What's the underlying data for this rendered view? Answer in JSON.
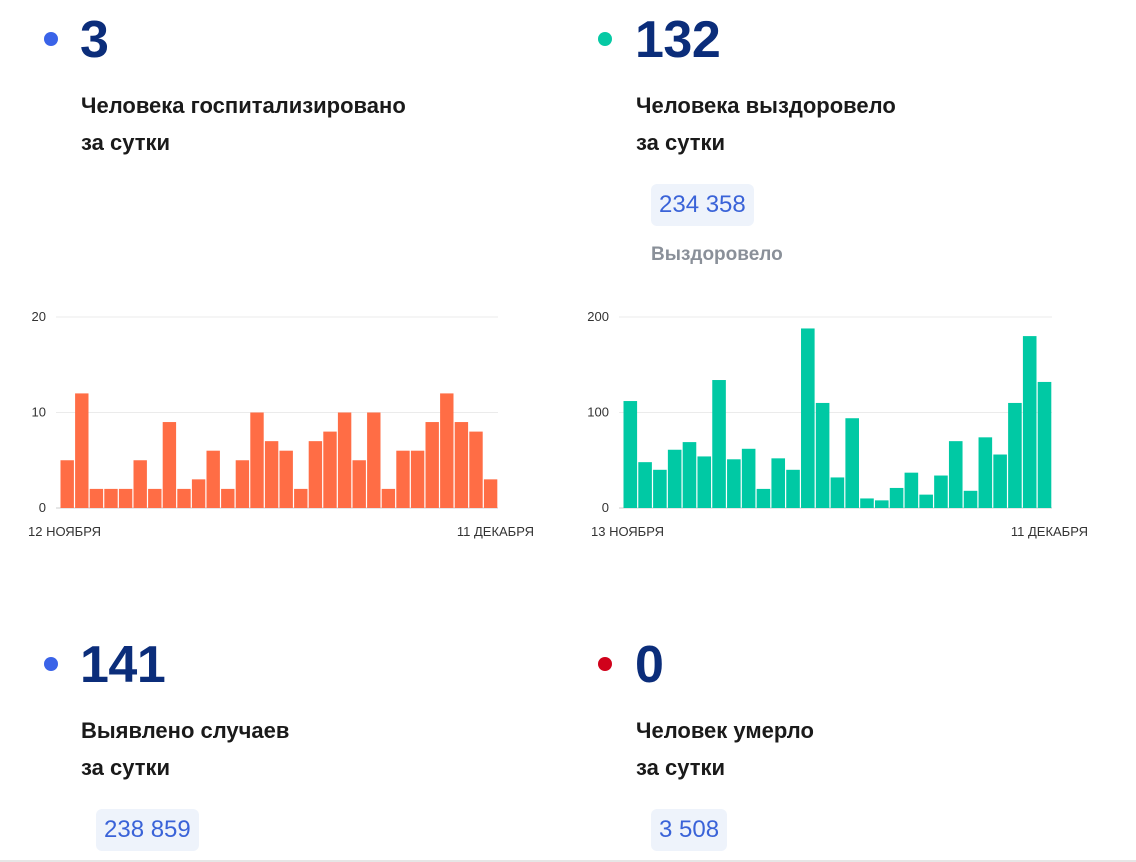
{
  "colors": {
    "blue_dot": "#3a63e8",
    "teal_dot": "#06c9a4",
    "red_dot": "#d0021b",
    "orange_bar": "#ff6d45",
    "teal_bar": "#00c9a4",
    "number": "#0b2d7a"
  },
  "hospitalized": {
    "value": "3",
    "line1": "Человека госпитализировано",
    "line2": "за сутки"
  },
  "recovered": {
    "value": "132",
    "line1": "Человека выздоровело",
    "line2": "за сутки",
    "total": "234 358",
    "total_label": "Выздоровело"
  },
  "cases": {
    "value": "141",
    "line1": "Выявлено случаев",
    "line2": "за сутки",
    "total": "238 859"
  },
  "deaths": {
    "value": "0",
    "line1": "Человек умерло",
    "line2": "за сутки",
    "total": "3 508"
  },
  "chart_data": [
    {
      "type": "bar",
      "x_start_label": "12 НОЯБРЯ",
      "x_end_label": "11 ДЕКАБРЯ",
      "yticks": [
        0,
        10,
        20
      ],
      "ylim": [
        0,
        20
      ],
      "grid": true,
      "color": "#ff6d45",
      "values": [
        5,
        12,
        2,
        2,
        2,
        5,
        2,
        9,
        2,
        3,
        6,
        2,
        5,
        10,
        7,
        6,
        2,
        7,
        8,
        10,
        5,
        10,
        2,
        6,
        6,
        9,
        12,
        9,
        8,
        3
      ]
    },
    {
      "type": "bar",
      "x_start_label": "13 НОЯБРЯ",
      "x_end_label": "11 ДЕКАБРЯ",
      "yticks": [
        0,
        100,
        200
      ],
      "ylim": [
        0,
        200
      ],
      "grid": true,
      "color": "#00c9a4",
      "values": [
        112,
        48,
        40,
        61,
        69,
        54,
        134,
        51,
        62,
        20,
        52,
        40,
        188,
        110,
        32,
        94,
        10,
        8,
        21,
        37,
        14,
        34,
        70,
        18,
        74,
        56,
        110,
        180,
        132
      ]
    }
  ]
}
